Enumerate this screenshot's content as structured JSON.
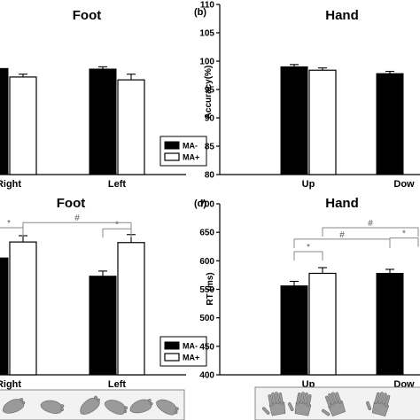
{
  "chart_data": [
    {
      "panel": "",
      "title": "Foot",
      "type": "bar",
      "ylabel": "",
      "categories": [
        "Right",
        "Left"
      ],
      "ylim": [
        80,
        110
      ],
      "yticks": [],
      "series": [
        {
          "name": "MA-",
          "values": [
            98.7,
            98.6
          ],
          "errors": [
            0.4,
            0.4
          ]
        },
        {
          "name": "MA+",
          "values": [
            97.2,
            96.7
          ],
          "errors": [
            0.5,
            1.0
          ]
        }
      ],
      "legend": {
        "placement": "bottom-right",
        "entries": [
          "MA-",
          "MA+"
        ]
      },
      "brackets": []
    },
    {
      "panel": "(b)",
      "title": "Hand",
      "type": "bar",
      "ylabel": "Accuracy(%)",
      "categories": [
        "Up",
        "Dow"
      ],
      "ylim": [
        80,
        110
      ],
      "yticks": [
        "80",
        "85",
        "90",
        "95",
        "100",
        "105",
        "110"
      ],
      "series": [
        {
          "name": "MA-",
          "values": [
            99.0,
            97.8
          ],
          "errors": [
            0.4,
            0.4
          ]
        },
        {
          "name": "MA+",
          "values": [
            98.4,
            null
          ],
          "errors": [
            0.4,
            null
          ]
        }
      ],
      "legend": null,
      "brackets": []
    },
    {
      "panel": "",
      "title": "Foot",
      "type": "bar",
      "ylabel": "",
      "categories": [
        "Right",
        "Left"
      ],
      "ylim": [
        400,
        700
      ],
      "yticks": [],
      "series": [
        {
          "name": "MA-",
          "values": [
            605,
            573
          ],
          "errors": [
            0,
            9
          ]
        },
        {
          "name": "MA+",
          "values": [
            633,
            632
          ],
          "errors": [
            11,
            14
          ]
        }
      ],
      "legend": {
        "placement": "bottom-right",
        "entries": [
          "MA-",
          "MA+"
        ]
      },
      "brackets": [
        {
          "label": "*",
          "level": 658,
          "from": "Right MA-",
          "to": "Right MA+"
        },
        {
          "label": "#",
          "level": 667,
          "from": "Right MA+",
          "to": "Left MA+"
        },
        {
          "label": "*",
          "level": 656,
          "from": "Left MA-",
          "to": "Left MA+"
        }
      ]
    },
    {
      "panel": "(d)",
      "title": "Hand",
      "type": "bar",
      "ylabel": "RT (ms)",
      "categories": [
        "Up",
        "Dow"
      ],
      "ylim": [
        400,
        700
      ],
      "yticks": [
        "400",
        "450",
        "500",
        "550",
        "600",
        "650",
        "700"
      ],
      "series": [
        {
          "name": "MA-",
          "values": [
            556,
            578
          ],
          "errors": [
            8,
            7
          ]
        },
        {
          "name": "MA+",
          "values": [
            578,
            null
          ],
          "errors": [
            10,
            null
          ]
        }
      ],
      "legend": null,
      "brackets": [
        {
          "label": "*",
          "level": 616,
          "from": "Up MA-",
          "to": "Up MA+"
        },
        {
          "label": "#",
          "level": 638,
          "from": "Up MA-",
          "to": "Dow MA-"
        },
        {
          "label": "#",
          "level": 658,
          "from": "Up MA+",
          "to": "Dow MA+"
        },
        {
          "label": "*",
          "level": 640,
          "from": "Dow MA-",
          "to": "Dow MA+"
        }
      ]
    }
  ],
  "stimulus_strips": [
    {
      "panel": "foot",
      "icons": [
        "foot-icon",
        "foot-icon",
        "foot-icon",
        "foot-icon",
        "foot-icon",
        "foot-icon"
      ]
    },
    {
      "panel": "hand",
      "icons": [
        "hand-icon",
        "hand-icon",
        "hand-icon",
        "hand-icon"
      ]
    }
  ]
}
